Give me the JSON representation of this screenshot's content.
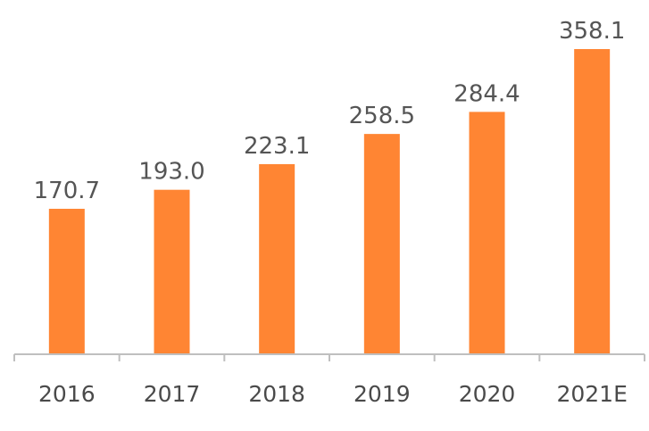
{
  "chart_data": {
    "type": "bar",
    "categories": [
      "2016",
      "2017",
      "2018",
      "2019",
      "2020",
      "2021E"
    ],
    "values": [
      170.7,
      193.0,
      223.1,
      258.5,
      284.4,
      358.1
    ],
    "value_labels": [
      "170.7",
      "193.0",
      "223.1",
      "258.5",
      "284.4",
      "358.1"
    ],
    "title": "",
    "xlabel": "",
    "ylabel": "",
    "ylim": [
      0,
      358.1
    ],
    "grid": false,
    "legend": "none",
    "bar_color": "#FF8533",
    "axis_color": "#BFBFBF"
  }
}
